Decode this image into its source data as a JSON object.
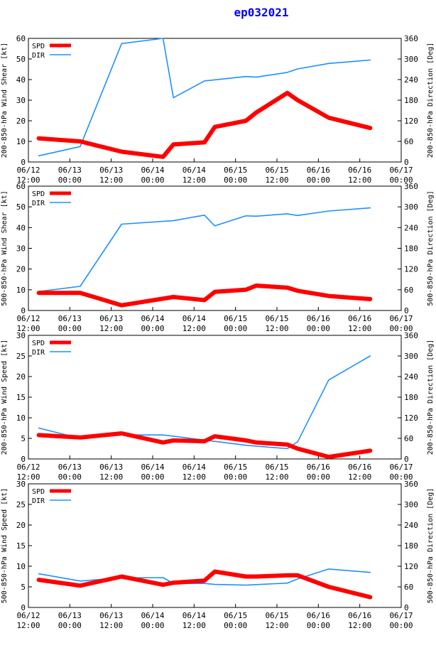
{
  "title": "ep032021",
  "colors": {
    "spd": "#ff0000",
    "dir": "#1e90ff",
    "axis": "#000000",
    "title": "#0000ff"
  },
  "chart_data": [
    {
      "type": "line",
      "ylabel_left": "200-850-hPa Wind Shear [kt]",
      "ylabel_right": "200-850-hPa Direction [Deg]",
      "ylim_left": [
        0,
        60
      ],
      "yticks_left": [
        "0",
        "10",
        "20",
        "30",
        "40",
        "50",
        "60"
      ],
      "ylim_right": [
        0,
        360
      ],
      "yticks_right": [
        "0",
        "60",
        "120",
        "180",
        "240",
        "300",
        "360"
      ],
      "x_ticks": [
        [
          "06/12",
          "12:00"
        ],
        [
          "06/13",
          "00:00"
        ],
        [
          "06/13",
          "12:00"
        ],
        [
          "06/14",
          "00:00"
        ],
        [
          "06/14",
          "12:00"
        ],
        [
          "06/15",
          "00:00"
        ],
        [
          "06/15",
          "12:00"
        ],
        [
          "06/16",
          "00:00"
        ],
        [
          "06/16",
          "12:00"
        ],
        [
          "06/17",
          "00:00"
        ]
      ],
      "xlim": [
        0,
        9
      ],
      "grid": false,
      "legend": "top-left",
      "series": [
        {
          "name": "SPD",
          "axis": "left",
          "x": [
            0.25,
            1.25,
            2.25,
            3.25,
            3.5,
            4.25,
            4.5,
            5.25,
            5.5,
            6.25,
            6.5,
            7.25,
            8.25
          ],
          "values": [
            11.5,
            10,
            5,
            2.5,
            8.5,
            9.5,
            17,
            20,
            24,
            33.5,
            30,
            21.5,
            16.5
          ]
        },
        {
          "name": "DIR",
          "axis": "right",
          "x": [
            0.25,
            1.25,
            2.25,
            3.25,
            3.5,
            4.25,
            5.25,
            5.5,
            6.25,
            6.5,
            7.25,
            8.25
          ],
          "values": [
            18,
            45,
            345,
            360,
            187,
            236,
            249,
            247,
            261,
            271,
            287,
            297
          ]
        }
      ]
    },
    {
      "type": "line",
      "ylabel_left": "500-850-hPa Wind Shear [kt]",
      "ylabel_right": "500-850-hPa Direction [Deg]",
      "ylim_left": [
        0,
        60
      ],
      "yticks_left": [
        "0",
        "10",
        "20",
        "30",
        "40",
        "50",
        "60"
      ],
      "ylim_right": [
        0,
        360
      ],
      "yticks_right": [
        "0",
        "60",
        "120",
        "180",
        "240",
        "300",
        "360"
      ],
      "x_ticks": [
        [
          "06/12",
          "12:00"
        ],
        [
          "06/13",
          "00:00"
        ],
        [
          "06/13",
          "12:00"
        ],
        [
          "06/14",
          "00:00"
        ],
        [
          "06/14",
          "12:00"
        ],
        [
          "06/15",
          "00:00"
        ],
        [
          "06/15",
          "12:00"
        ],
        [
          "06/16",
          "00:00"
        ],
        [
          "06/16",
          "12:00"
        ],
        [
          "06/17",
          "00:00"
        ]
      ],
      "xlim": [
        0,
        9
      ],
      "grid": false,
      "legend": "top-left",
      "series": [
        {
          "name": "SPD",
          "axis": "left",
          "x": [
            0.25,
            1.25,
            2.25,
            3.5,
            4.25,
            4.5,
            5.25,
            5.5,
            6.25,
            6.5,
            7.25,
            8.25
          ],
          "values": [
            8.5,
            8.5,
            2.5,
            6.5,
            5,
            9,
            10,
            12,
            11,
            9.5,
            7,
            5.5
          ]
        },
        {
          "name": "DIR",
          "axis": "right",
          "x": [
            0.25,
            1.25,
            2.25,
            3.5,
            4.25,
            4.5,
            5.25,
            5.5,
            6.25,
            6.5,
            7.25,
            8.25
          ],
          "values": [
            55,
            70,
            250,
            260,
            276,
            245,
            274,
            273,
            280,
            275,
            288,
            297
          ]
        }
      ]
    },
    {
      "type": "line",
      "ylabel_left": "200-850-hPa Wind Speed [kt]",
      "ylabel_right": "200-850-hPa Direction [Deg]",
      "ylim_left": [
        0,
        30
      ],
      "yticks_left": [
        "0",
        "5",
        "10",
        "15",
        "20",
        "25",
        "30"
      ],
      "ylim_right": [
        0,
        360
      ],
      "yticks_right": [
        "0",
        "60",
        "120",
        "180",
        "240",
        "300",
        "360"
      ],
      "x_ticks": [
        [
          "06/12",
          "12:00"
        ],
        [
          "06/13",
          "00:00"
        ],
        [
          "06/13",
          "12:00"
        ],
        [
          "06/14",
          "00:00"
        ],
        [
          "06/14",
          "12:00"
        ],
        [
          "06/15",
          "00:00"
        ],
        [
          "06/15",
          "12:00"
        ],
        [
          "06/16",
          "00:00"
        ],
        [
          "06/16",
          "12:00"
        ],
        [
          "06/17",
          "00:00"
        ]
      ],
      "xlim": [
        0,
        9
      ],
      "grid": false,
      "legend": "top-left",
      "series": [
        {
          "name": "SPD",
          "axis": "left",
          "x": [
            0.25,
            1.25,
            2.25,
            3.25,
            3.5,
            4.25,
            4.5,
            5.25,
            5.5,
            6.25,
            6.5,
            7.25,
            8.25
          ],
          "values": [
            5.8,
            5.2,
            6.2,
            4,
            4.5,
            4.3,
            5.5,
            4.5,
            4,
            3.5,
            2.5,
            0.5,
            2
          ]
        },
        {
          "name": "DIR",
          "axis": "right",
          "x": [
            0.25,
            1.25,
            2.25,
            3.25,
            4.25,
            5.25,
            6.25,
            6.5,
            7.25,
            8.25
          ],
          "values": [
            90,
            60,
            70,
            70,
            55,
            40,
            30,
            50,
            230,
            300
          ]
        }
      ]
    },
    {
      "type": "line",
      "ylabel_left": "500-850-hPa Wind Speed [kt]",
      "ylabel_right": "500-850-hPa Direction [Deg]",
      "ylim_left": [
        0,
        30
      ],
      "yticks_left": [
        "0",
        "5",
        "10",
        "15",
        "20",
        "25",
        "30"
      ],
      "ylim_right": [
        0,
        360
      ],
      "yticks_right": [
        "0",
        "60",
        "120",
        "180",
        "240",
        "300",
        "360"
      ],
      "x_ticks": [
        [
          "06/12",
          "12:00"
        ],
        [
          "06/13",
          "00:00"
        ],
        [
          "06/13",
          "12:00"
        ],
        [
          "06/14",
          "00:00"
        ],
        [
          "06/14",
          "12:00"
        ],
        [
          "06/15",
          "00:00"
        ],
        [
          "06/15",
          "12:00"
        ],
        [
          "06/16",
          "00:00"
        ],
        [
          "06/16",
          "12:00"
        ],
        [
          "06/17",
          "00:00"
        ]
      ],
      "xlim": [
        0,
        9
      ],
      "grid": false,
      "legend": "top-left",
      "series": [
        {
          "name": "SPD",
          "axis": "left",
          "x": [
            0.25,
            1.25,
            2.25,
            3.25,
            3.5,
            4.25,
            4.5,
            5.25,
            5.5,
            6.25,
            6.5,
            7.25,
            8.25
          ],
          "values": [
            6.7,
            5.3,
            7.5,
            5.5,
            6,
            6.5,
            8.7,
            7.5,
            7.5,
            7.8,
            7.8,
            5,
            2.5
          ]
        },
        {
          "name": "DIR",
          "axis": "right",
          "x": [
            0.25,
            1.25,
            2.25,
            3.25,
            3.5,
            4.25,
            4.5,
            5.25,
            6.25,
            6.5,
            7.25,
            8.25
          ],
          "values": [
            98,
            77,
            86,
            87,
            70,
            70,
            67,
            65,
            71,
            83,
            112,
            102
          ]
        }
      ]
    }
  ]
}
